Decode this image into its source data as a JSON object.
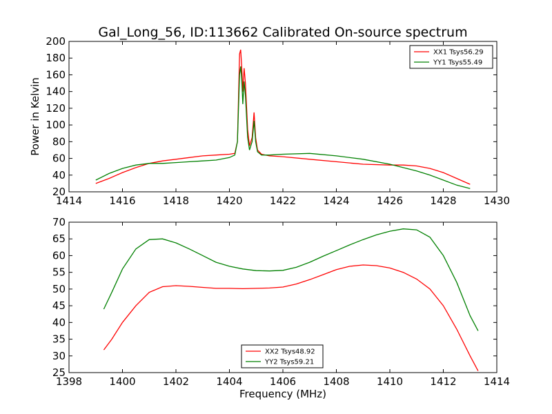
{
  "chart_data": [
    {
      "type": "line",
      "title": "Gal_Long_56, ID:113662 Calibrated On-source spectrum",
      "xlabel": "",
      "ylabel": "Power in Kelvin",
      "xlim": [
        1414,
        1430
      ],
      "ylim": [
        20,
        200
      ],
      "xticks": [
        "1414",
        "1416",
        "1418",
        "1420",
        "1422",
        "1424",
        "1426",
        "1428",
        "1430"
      ],
      "yticks": [
        "20",
        "40",
        "60",
        "80",
        "100",
        "120",
        "140",
        "160",
        "180",
        "200"
      ],
      "legend_position": "top-right",
      "grid": false,
      "series": [
        {
          "name": "XX1 Tsys56.29",
          "color": "#ff0000",
          "points": [
            [
              1415.0,
              30
            ],
            [
              1415.5,
              36
            ],
            [
              1416.0,
              43
            ],
            [
              1416.5,
              49
            ],
            [
              1417.0,
              54
            ],
            [
              1417.5,
              57
            ],
            [
              1418.0,
              59
            ],
            [
              1418.5,
              61
            ],
            [
              1419.0,
              63
            ],
            [
              1419.5,
              64
            ],
            [
              1420.0,
              65
            ],
            [
              1420.2,
              66
            ],
            [
              1420.3,
              80
            ],
            [
              1420.38,
              185
            ],
            [
              1420.42,
              190
            ],
            [
              1420.46,
              170
            ],
            [
              1420.5,
              140
            ],
            [
              1420.55,
              168
            ],
            [
              1420.6,
              150
            ],
            [
              1420.68,
              95
            ],
            [
              1420.75,
              75
            ],
            [
              1420.85,
              85
            ],
            [
              1420.92,
              115
            ],
            [
              1420.98,
              85
            ],
            [
              1421.05,
              70
            ],
            [
              1421.2,
              65
            ],
            [
              1421.5,
              63
            ],
            [
              1422.0,
              62
            ],
            [
              1423.0,
              59
            ],
            [
              1424.0,
              56
            ],
            [
              1425.0,
              53
            ],
            [
              1426.0,
              52
            ],
            [
              1426.5,
              52
            ],
            [
              1427.0,
              51
            ],
            [
              1427.5,
              48
            ],
            [
              1428.0,
              43
            ],
            [
              1428.5,
              36
            ],
            [
              1429.0,
              29
            ]
          ]
        },
        {
          "name": "YY1 Tsys55.49",
          "color": "#008000",
          "points": [
            [
              1415.0,
              34
            ],
            [
              1415.5,
              42
            ],
            [
              1416.0,
              48
            ],
            [
              1416.5,
              52
            ],
            [
              1417.0,
              54
            ],
            [
              1417.5,
              54
            ],
            [
              1418.0,
              55
            ],
            [
              1418.5,
              56
            ],
            [
              1419.0,
              57
            ],
            [
              1419.5,
              58
            ],
            [
              1420.0,
              61
            ],
            [
              1420.2,
              64
            ],
            [
              1420.3,
              80
            ],
            [
              1420.38,
              160
            ],
            [
              1420.42,
              170
            ],
            [
              1420.46,
              155
            ],
            [
              1420.5,
              125
            ],
            [
              1420.55,
              152
            ],
            [
              1420.6,
              135
            ],
            [
              1420.68,
              85
            ],
            [
              1420.75,
              70
            ],
            [
              1420.85,
              80
            ],
            [
              1420.92,
              105
            ],
            [
              1420.98,
              80
            ],
            [
              1421.05,
              68
            ],
            [
              1421.2,
              64
            ],
            [
              1421.5,
              64
            ],
            [
              1422.0,
              65
            ],
            [
              1423.0,
              66
            ],
            [
              1424.0,
              63
            ],
            [
              1425.0,
              59
            ],
            [
              1426.0,
              53
            ],
            [
              1426.5,
              49
            ],
            [
              1427.0,
              45
            ],
            [
              1427.5,
              40
            ],
            [
              1428.0,
              34
            ],
            [
              1428.5,
              28
            ],
            [
              1429.0,
              24
            ]
          ]
        }
      ]
    },
    {
      "type": "line",
      "title": "",
      "xlabel": "Frequency (MHz)",
      "ylabel": "",
      "xlim": [
        1398,
        1414
      ],
      "ylim": [
        25,
        70
      ],
      "xticks": [
        "1398",
        "1400",
        "1402",
        "1404",
        "1406",
        "1408",
        "1410",
        "1412",
        "1414"
      ],
      "yticks": [
        "25",
        "30",
        "35",
        "40",
        "45",
        "50",
        "55",
        "60",
        "65",
        "70"
      ],
      "legend_position": "lower-center",
      "grid": false,
      "series": [
        {
          "name": "XX2 Tsys48.92",
          "color": "#ff0000",
          "points": [
            [
              1399.3,
              31.8
            ],
            [
              1399.6,
              35
            ],
            [
              1400.0,
              40
            ],
            [
              1400.5,
              45
            ],
            [
              1401.0,
              49
            ],
            [
              1401.5,
              50.7
            ],
            [
              1402.0,
              51
            ],
            [
              1402.5,
              50.8
            ],
            [
              1403.0,
              50.5
            ],
            [
              1403.5,
              50.2
            ],
            [
              1404.0,
              50.2
            ],
            [
              1404.5,
              50.1
            ],
            [
              1405.0,
              50.2
            ],
            [
              1405.5,
              50.3
            ],
            [
              1406.0,
              50.6
            ],
            [
              1406.5,
              51.5
            ],
            [
              1407.0,
              52.8
            ],
            [
              1407.5,
              54.3
            ],
            [
              1408.0,
              55.8
            ],
            [
              1408.5,
              56.8
            ],
            [
              1409.0,
              57.2
            ],
            [
              1409.5,
              57
            ],
            [
              1410.0,
              56.3
            ],
            [
              1410.5,
              55
            ],
            [
              1411.0,
              53
            ],
            [
              1411.5,
              50
            ],
            [
              1412.0,
              45
            ],
            [
              1412.5,
              38
            ],
            [
              1413.0,
              30
            ],
            [
              1413.3,
              25.5
            ]
          ]
        },
        {
          "name": "YY2 Tsys59.21",
          "color": "#008000",
          "points": [
            [
              1399.3,
              44
            ],
            [
              1399.6,
              49
            ],
            [
              1400.0,
              56
            ],
            [
              1400.5,
              62
            ],
            [
              1401.0,
              64.8
            ],
            [
              1401.5,
              65
            ],
            [
              1402.0,
              63.8
            ],
            [
              1402.5,
              62
            ],
            [
              1403.0,
              60
            ],
            [
              1403.5,
              58
            ],
            [
              1404.0,
              56.8
            ],
            [
              1404.5,
              56
            ],
            [
              1405.0,
              55.5
            ],
            [
              1405.5,
              55.4
            ],
            [
              1406.0,
              55.6
            ],
            [
              1406.5,
              56.5
            ],
            [
              1407.0,
              58
            ],
            [
              1407.5,
              59.8
            ],
            [
              1408.0,
              61.5
            ],
            [
              1408.5,
              63.2
            ],
            [
              1409.0,
              64.8
            ],
            [
              1409.5,
              66.2
            ],
            [
              1410.0,
              67.3
            ],
            [
              1410.5,
              68
            ],
            [
              1411.0,
              67.7
            ],
            [
              1411.5,
              65.5
            ],
            [
              1412.0,
              60
            ],
            [
              1412.5,
              52
            ],
            [
              1413.0,
              42
            ],
            [
              1413.3,
              37.5
            ]
          ]
        }
      ]
    }
  ]
}
